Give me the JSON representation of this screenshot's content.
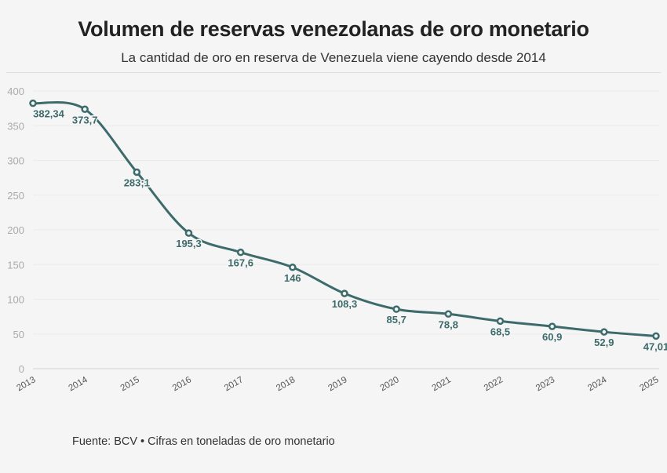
{
  "chart_data": {
    "type": "line",
    "title": "Volumen de reservas venezolanas de oro monetario",
    "subtitle": "La cantidad de oro en reserva de Venezuela viene cayendo desde 2014",
    "source": "Fuente: BCV • Cifras en toneladas de oro monetario",
    "xlabel": "",
    "ylabel": "",
    "x": [
      "2013",
      "2014",
      "2015",
      "2016",
      "2017",
      "2018",
      "2019",
      "2020",
      "2021",
      "2022",
      "2023",
      "2024",
      "2025"
    ],
    "values": [
      382.34,
      373.7,
      283.1,
      195.3,
      167.6,
      146,
      108.3,
      85.7,
      78.8,
      68.5,
      60.9,
      52.9,
      47.01
    ],
    "labels": [
      "382,34",
      "373,7",
      "283;1",
      "195,3",
      "167,6",
      "146",
      "108,3",
      "85,7",
      "78,8",
      "68,5",
      "60,9",
      "52,9",
      "47,01"
    ],
    "yticks": [
      "0",
      "50",
      "100",
      "150",
      "200",
      "250",
      "300",
      "350",
      "400"
    ],
    "ylim": [
      0,
      400
    ],
    "grid": true,
    "color": "#3d6b6b"
  }
}
